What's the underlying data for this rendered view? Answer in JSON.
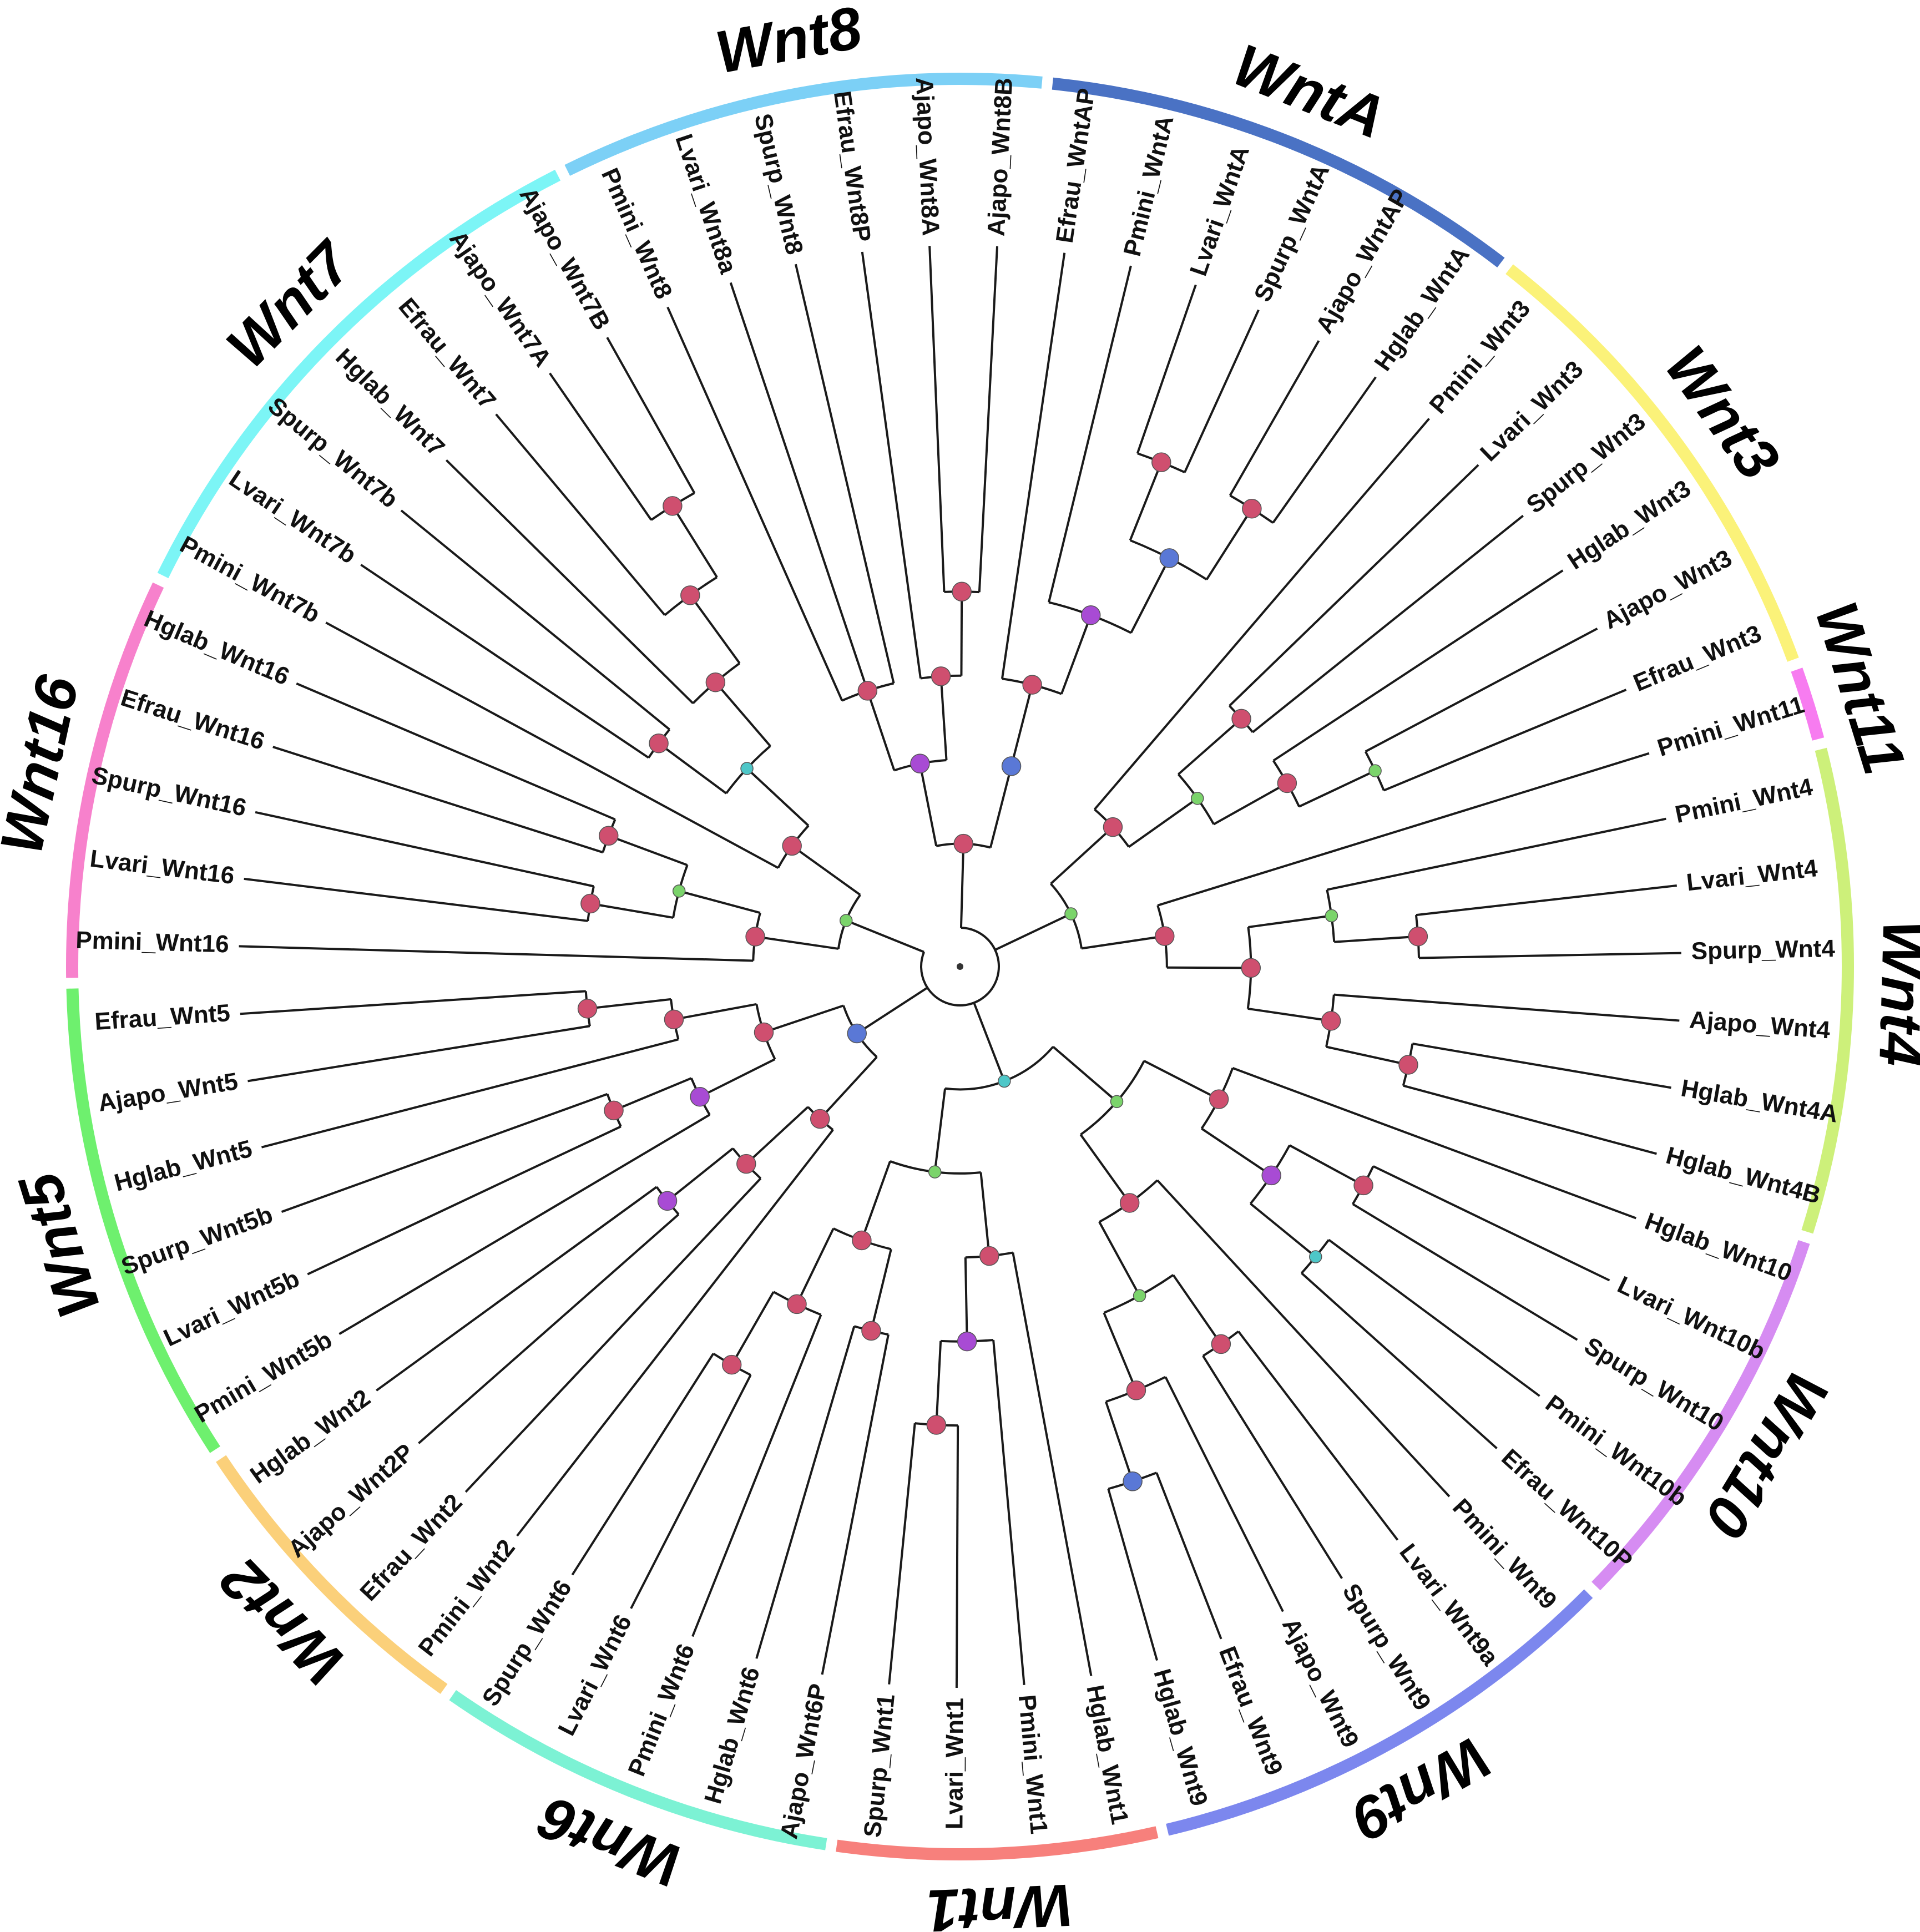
{
  "figure_kind": "circular phylogenetic tree",
  "colors": {
    "WntA": "#4a72c4",
    "Wnt3": "#fbf279",
    "Wnt11": "#f77cf0",
    "Wnt4": "#cdf07a",
    "Wnt10": "#d68cf2",
    "Wnt9": "#7c87ee",
    "Wnt1": "#f7807c",
    "Wnt6": "#7cf2d4",
    "Wnt2": "#fbd07a",
    "Wnt5": "#6ef06e",
    "Wnt16": "#f781cc",
    "Wnt7": "#7cf5f6",
    "Wnt8": "#7cd0f6",
    "node_red": "#cf4f6f",
    "node_purple": "#a84bd4",
    "node_blue": "#5a78d6",
    "node_teal": "#4ec7c8",
    "node_green": "#7bd46b"
  },
  "clades": [
    {
      "name": "Wnt8",
      "color_key": "Wnt8",
      "leaves": [
        "Pmini_Wnt8",
        "Lvari_Wnt8a",
        "Spurp_Wnt8",
        "Efrau_Wnt8P",
        "Ajapo_Wnt8A",
        "Ajapo_Wnt8B"
      ]
    },
    {
      "name": "WntA",
      "color_key": "WntA",
      "leaves": [
        "Efrau_WntAP",
        "Pmini_WntA",
        "Lvari_WntA",
        "Spurp_WntA",
        "Ajapo_WntAP",
        "Hglab_WntA"
      ]
    },
    {
      "name": "Wnt3",
      "color_key": "Wnt3",
      "leaves": [
        "Pmini_Wnt3",
        "Lvari_Wnt3",
        "Spurp_Wnt3",
        "Hglab_Wnt3",
        "Ajapo_Wnt3",
        "Efrau_Wnt3"
      ]
    },
    {
      "name": "Wnt11",
      "color_key": "Wnt11",
      "leaves": [
        "Pmini_Wnt11"
      ]
    },
    {
      "name": "Wnt4",
      "color_key": "Wnt4",
      "leaves": [
        "Pmini_Wnt4",
        "Lvari_Wnt4",
        "Spurp_Wnt4",
        "Ajapo_Wnt4",
        "Hglab_Wnt4A",
        "Hglab_Wnt4B"
      ]
    },
    {
      "name": "Wnt10",
      "color_key": "Wnt10",
      "leaves": [
        "Hglab_Wnt10",
        "Lvari_Wnt10b",
        "Spurp_Wnt10",
        "Pmini_Wnt10b",
        "Efrau_Wnt10P"
      ]
    },
    {
      "name": "Wnt9",
      "color_key": "Wnt9",
      "leaves": [
        "Pmini_Wnt9",
        "Lvari_Wnt9a",
        "Spurp_Wnt9",
        "Ajapo_Wnt9",
        "Efrau_Wnt9",
        "Hglab_Wnt9"
      ]
    },
    {
      "name": "Wnt1",
      "color_key": "Wnt1",
      "leaves": [
        "Hglab_Wnt1",
        "Pmini_Wnt1",
        "Lvari_Wnt1",
        "Spurp_Wnt1"
      ]
    },
    {
      "name": "Wnt6",
      "color_key": "Wnt6",
      "leaves": [
        "Ajapo_Wnt6P",
        "Hglab_Wnt6",
        "Pmini_Wnt6",
        "Lvari_Wnt6",
        "Spurp_Wnt6"
      ]
    },
    {
      "name": "Wnt2",
      "color_key": "Wnt2",
      "leaves": [
        "Pmini_Wnt2",
        "Efrau_Wnt2",
        "Ajapo_Wnt2P",
        "Hglab_Wnt2"
      ]
    },
    {
      "name": "Wnt5",
      "color_key": "Wnt5",
      "leaves": [
        "Pmini_Wnt5b",
        "Lvari_Wnt5b",
        "Spurp_Wnt5b",
        "Hglab_Wnt5",
        "Ajapo_Wnt5",
        "Efrau_Wnt5"
      ]
    },
    {
      "name": "Wnt16",
      "color_key": "Wnt16",
      "leaves": [
        "Pmini_Wnt16",
        "Lvari_Wnt16",
        "Spurp_Wnt16",
        "Efrau_Wnt16",
        "Hglab_Wnt16"
      ]
    },
    {
      "name": "Wnt7",
      "color_key": "Wnt7",
      "leaves": [
        "Pmini_Wnt7b",
        "Lvari_Wnt7b",
        "Spurp_Wnt7b",
        "Hglab_Wnt7",
        "Efrau_Wnt7",
        "Ajapo_Wnt7A",
        "Ajapo_Wnt7B"
      ]
    }
  ],
  "tree": {
    "c": [
      {
        "s": "red",
        "c": [
          {
            "s": "purple",
            "c": [
              {
                "s": "red",
                "c": [
                  {
                    "l": "Pmini_Wnt8"
                  },
                  {
                    "l": "Lvari_Wnt8a"
                  },
                  {
                    "l": "Spurp_Wnt8"
                  }
                ]
              },
              {
                "s": "red",
                "c": [
                  {
                    "l": "Efrau_Wnt8P"
                  },
                  {
                    "s": "red",
                    "c": [
                      {
                        "l": "Ajapo_Wnt8A"
                      },
                      {
                        "l": "Ajapo_Wnt8B"
                      }
                    ]
                  }
                ]
              }
            ]
          },
          {
            "s": "blue",
            "c": [
              {
                "s": "red",
                "c": [
                  {
                    "l": "Efrau_WntAP"
                  },
                  {
                    "s": "purple",
                    "c": [
                      {
                        "l": "Pmini_WntA"
                      },
                      {
                        "s": "blue",
                        "c": [
                          {
                            "s": "red",
                            "c": [
                              {
                                "l": "Lvari_WntA"
                              },
                              {
                                "l": "Spurp_WntA"
                              }
                            ]
                          },
                          {
                            "s": "red",
                            "c": [
                              {
                                "l": "Ajapo_WntAP"
                              },
                              {
                                "l": "Hglab_WntA"
                              }
                            ]
                          }
                        ]
                      }
                    ]
                  }
                ]
              }
            ]
          }
        ]
      },
      {
        "s": "green",
        "c": [
          {
            "s": "red",
            "c": [
              {
                "l": "Pmini_Wnt3"
              },
              {
                "s": "green",
                "c": [
                  {
                    "s": "red",
                    "c": [
                      {
                        "l": "Lvari_Wnt3"
                      },
                      {
                        "l": "Spurp_Wnt3"
                      }
                    ]
                  },
                  {
                    "s": "red",
                    "c": [
                      {
                        "l": "Hglab_Wnt3"
                      },
                      {
                        "s": "green",
                        "c": [
                          {
                            "l": "Ajapo_Wnt3"
                          },
                          {
                            "l": "Efrau_Wnt3"
                          }
                        ]
                      }
                    ]
                  }
                ]
              }
            ]
          },
          {
            "s": "red",
            "c": [
              {
                "l": "Pmini_Wnt11"
              },
              {
                "s": "red",
                "c": [
                  {
                    "s": "green",
                    "c": [
                      {
                        "l": "Pmini_Wnt4"
                      },
                      {
                        "s": "red",
                        "c": [
                          {
                            "l": "Lvari_Wnt4"
                          },
                          {
                            "l": "Spurp_Wnt4"
                          }
                        ]
                      }
                    ]
                  },
                  {
                    "s": "red",
                    "c": [
                      {
                        "l": "Ajapo_Wnt4"
                      },
                      {
                        "s": "red",
                        "c": [
                          {
                            "l": "Hglab_Wnt4A"
                          },
                          {
                            "l": "Hglab_Wnt4B"
                          }
                        ]
                      }
                    ]
                  }
                ]
              }
            ]
          }
        ]
      },
      {
        "s": "teal",
        "c": [
          {
            "s": "green",
            "c": [
              {
                "s": "red",
                "c": [
                  {
                    "l": "Hglab_Wnt10"
                  },
                  {
                    "s": "purple",
                    "c": [
                      {
                        "s": "red",
                        "c": [
                          {
                            "l": "Lvari_Wnt10b"
                          },
                          {
                            "l": "Spurp_Wnt10"
                          }
                        ]
                      },
                      {
                        "s": "teal",
                        "c": [
                          {
                            "l": "Pmini_Wnt10b"
                          },
                          {
                            "l": "Efrau_Wnt10P"
                          }
                        ]
                      }
                    ]
                  }
                ]
              },
              {
                "s": "red",
                "c": [
                  {
                    "l": "Pmini_Wnt9"
                  },
                  {
                    "s": "green",
                    "c": [
                      {
                        "s": "red",
                        "c": [
                          {
                            "l": "Lvari_Wnt9a"
                          },
                          {
                            "l": "Spurp_Wnt9"
                          }
                        ]
                      },
                      {
                        "s": "red",
                        "c": [
                          {
                            "l": "Ajapo_Wnt9"
                          },
                          {
                            "s": "blue",
                            "c": [
                              {
                                "l": "Efrau_Wnt9"
                              },
                              {
                                "l": "Hglab_Wnt9"
                              }
                            ]
                          }
                        ]
                      }
                    ]
                  }
                ]
              }
            ]
          },
          {
            "s": "green",
            "c": [
              {
                "s": "red",
                "c": [
                  {
                    "l": "Hglab_Wnt1"
                  },
                  {
                    "s": "purple",
                    "c": [
                      {
                        "l": "Pmini_Wnt1"
                      },
                      {
                        "s": "red",
                        "c": [
                          {
                            "l": "Lvari_Wnt1"
                          },
                          {
                            "l": "Spurp_Wnt1"
                          }
                        ]
                      }
                    ]
                  }
                ]
              },
              {
                "s": "red",
                "c": [
                  {
                    "s": "red",
                    "c": [
                      {
                        "l": "Ajapo_Wnt6P"
                      },
                      {
                        "l": "Hglab_Wnt6"
                      }
                    ]
                  },
                  {
                    "s": "red",
                    "c": [
                      {
                        "l": "Pmini_Wnt6"
                      },
                      {
                        "s": "red",
                        "c": [
                          {
                            "l": "Lvari_Wnt6"
                          },
                          {
                            "l": "Spurp_Wnt6"
                          }
                        ]
                      }
                    ]
                  }
                ]
              }
            ]
          }
        ]
      },
      {
        "s": "blue",
        "c": [
          {
            "s": "red",
            "c": [
              {
                "l": "Pmini_Wnt2"
              },
              {
                "s": "red",
                "c": [
                  {
                    "l": "Efrau_Wnt2"
                  },
                  {
                    "s": "purple",
                    "c": [
                      {
                        "l": "Ajapo_Wnt2P"
                      },
                      {
                        "l": "Hglab_Wnt2"
                      }
                    ]
                  }
                ]
              }
            ]
          },
          {
            "s": "red",
            "c": [
              {
                "s": "purple",
                "c": [
                  {
                    "l": "Pmini_Wnt5b"
                  },
                  {
                    "s": "red",
                    "c": [
                      {
                        "l": "Lvari_Wnt5b"
                      },
                      {
                        "l": "Spurp_Wnt5b"
                      }
                    ]
                  }
                ]
              },
              {
                "s": "red",
                "c": [
                  {
                    "l": "Hglab_Wnt5"
                  },
                  {
                    "s": "red",
                    "c": [
                      {
                        "l": "Ajapo_Wnt5"
                      },
                      {
                        "l": "Efrau_Wnt5"
                      }
                    ]
                  }
                ]
              }
            ]
          }
        ]
      },
      {
        "s": "green",
        "c": [
          {
            "s": "red",
            "c": [
              {
                "l": "Pmini_Wnt16"
              },
              {
                "s": "green",
                "c": [
                  {
                    "s": "red",
                    "c": [
                      {
                        "l": "Lvari_Wnt16"
                      },
                      {
                        "l": "Spurp_Wnt16"
                      }
                    ]
                  },
                  {
                    "s": "red",
                    "c": [
                      {
                        "l": "Efrau_Wnt16"
                      },
                      {
                        "l": "Hglab_Wnt16"
                      }
                    ]
                  }
                ]
              }
            ]
          },
          {
            "s": "red",
            "c": [
              {
                "l": "Pmini_Wnt7b"
              },
              {
                "s": "teal",
                "c": [
                  {
                    "s": "red",
                    "c": [
                      {
                        "l": "Lvari_Wnt7b"
                      },
                      {
                        "l": "Spurp_Wnt7b"
                      }
                    ]
                  },
                  {
                    "s": "red",
                    "c": [
                      {
                        "l": "Hglab_Wnt7"
                      },
                      {
                        "s": "red",
                        "c": [
                          {
                            "l": "Efrau_Wnt7"
                          },
                          {
                            "s": "red",
                            "c": [
                              {
                                "l": "Ajapo_Wnt7A"
                              },
                              {
                                "l": "Ajapo_Wnt7B"
                              }
                            ]
                          }
                        ]
                      }
                    ]
                  }
                ]
              }
            ]
          }
        ]
      }
    ]
  }
}
